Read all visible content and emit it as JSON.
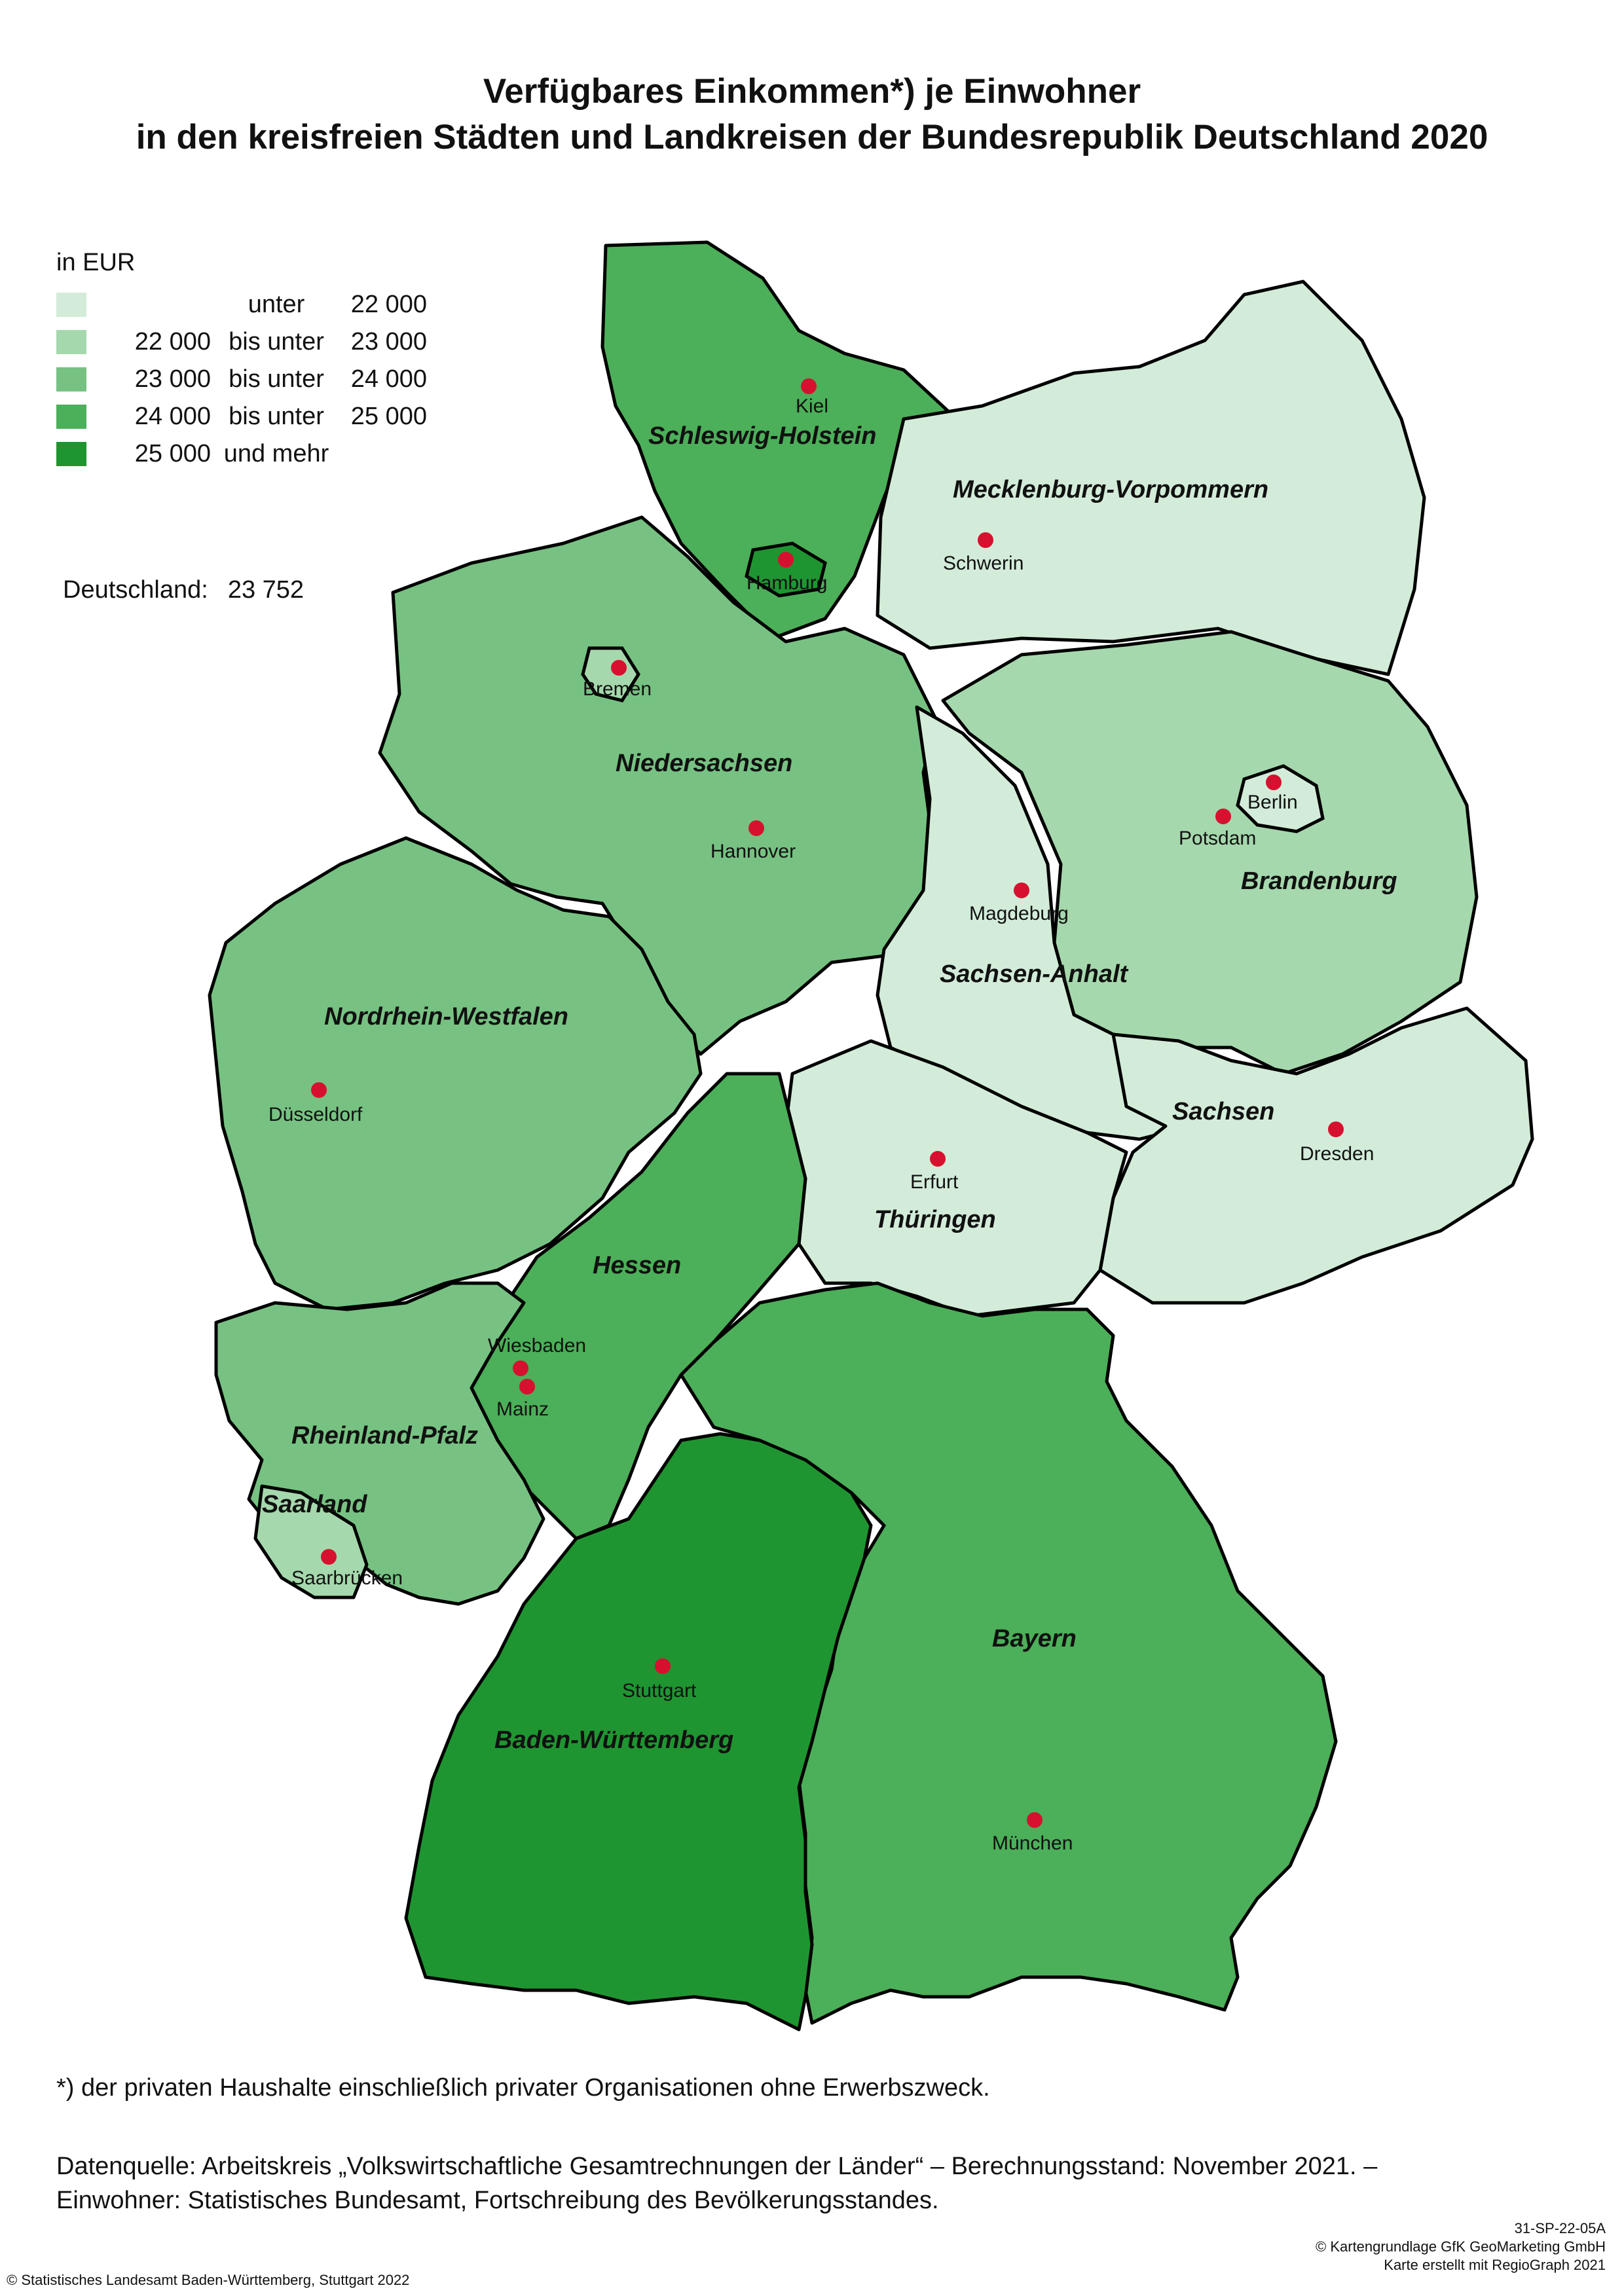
{
  "title": {
    "line1": "Verfügbares Einkommen*) je Einwohner",
    "line2": "in den kreisfreien Städten und Landkreisen der Bundesrepublik Deutschland 2020"
  },
  "legend": {
    "unit": "in EUR",
    "classes": [
      {
        "from": "",
        "mid": "unter",
        "to": "22 000",
        "color": "#d3ecd9"
      },
      {
        "from": "22 000",
        "mid": "bis unter",
        "to": "23 000",
        "color": "#a6d8ad"
      },
      {
        "from": "23 000",
        "mid": "bis unter",
        "to": "24 000",
        "color": "#77c282"
      },
      {
        "from": "24 000",
        "mid": "bis unter",
        "to": "25 000",
        "color": "#4caf59"
      },
      {
        "from": "25 000",
        "mid": "und mehr",
        "to": "",
        "color": "#1f9531"
      }
    ]
  },
  "national": {
    "label": "Deutschland:",
    "value": "23 752"
  },
  "map": {
    "states": [
      {
        "label": "Schleswig-Holstein",
        "class": 3
      },
      {
        "label": "Mecklenburg-Vorpommern",
        "class": 0
      },
      {
        "label": "Niedersachsen",
        "class": 2
      },
      {
        "label": "Brandenburg",
        "class": 1
      },
      {
        "label": "Sachsen-Anhalt",
        "class": 0
      },
      {
        "label": "Nordrhein-Westfalen",
        "class": 2
      },
      {
        "label": "Sachsen",
        "class": 0
      },
      {
        "label": "Thüringen",
        "class": 0
      },
      {
        "label": "Hessen",
        "class": 3
      },
      {
        "label": "Rheinland-Pfalz",
        "class": 2
      },
      {
        "label": "Saarland",
        "class": 1
      },
      {
        "label": "Bayern",
        "class": 3
      },
      {
        "label": "Baden-Württemberg",
        "class": 4
      }
    ],
    "cities": [
      "Kiel",
      "Hamburg",
      "Schwerin",
      "Bremen",
      "Hannover",
      "Berlin",
      "Potsdam",
      "Magdeburg",
      "Düsseldorf",
      "Erfurt",
      "Dresden",
      "Wiesbaden",
      "Mainz",
      "Saarbrücken",
      "Stuttgart",
      "München"
    ],
    "city_color": "#d7102f",
    "border_color": "#000000",
    "district_line_color": "#ffffff"
  },
  "footnote": "*) der privaten Haushalte einschließlich privater Organisationen ohne Erwerbszweck.",
  "source": {
    "line1": "Datenquelle: Arbeitskreis „Volkswirtschaftliche Gesamtrechnungen der Länder“ – Berechnungsstand: November 2021. –",
    "line2": "Einwohner: Statistisches Bundesamt, Fortschreibung des Bevölkerungsstandes."
  },
  "copyright_left": "© Statistisches Landesamt Baden-Württemberg, Stuttgart 2022",
  "copyright_right": {
    "code": "31-SP-22-05A",
    "basemap": "© Kartengrundlage GfK GeoMarketing GmbH",
    "tool": "Karte erstellt mit RegioGraph 2021"
  }
}
